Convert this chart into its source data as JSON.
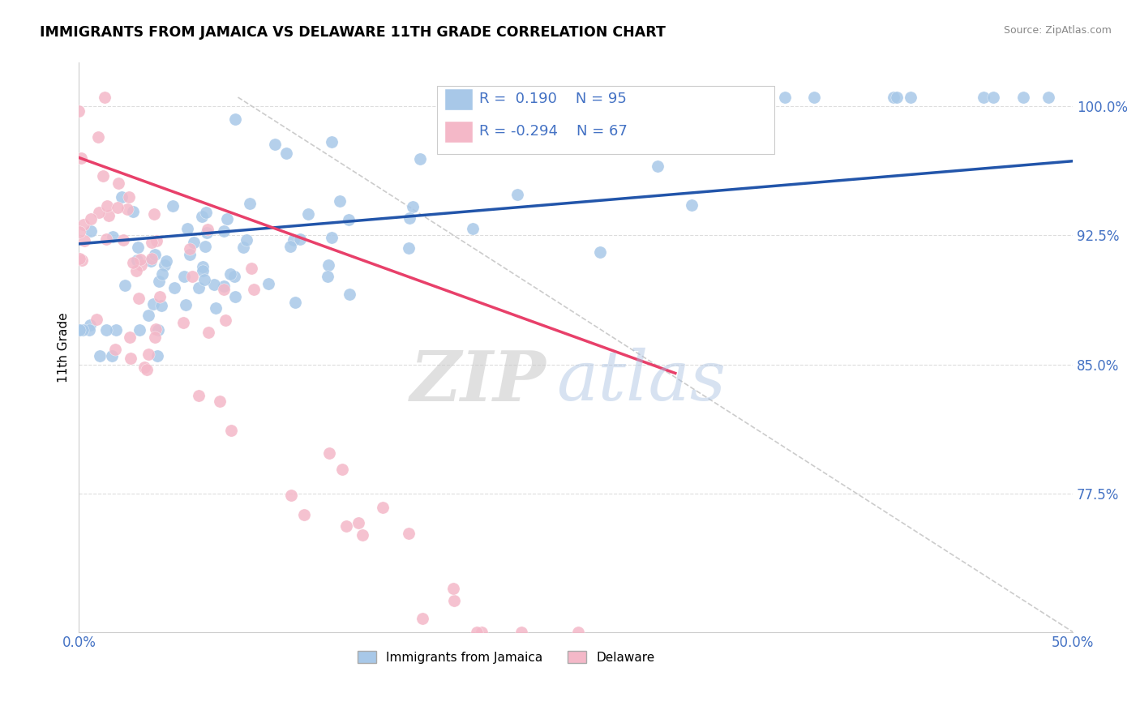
{
  "title": "IMMIGRANTS FROM JAMAICA VS DELAWARE 11TH GRADE CORRELATION CHART",
  "source_text": "Source: ZipAtlas.com",
  "ylabel": "11th Grade",
  "xlim": [
    0.0,
    0.5
  ],
  "ylim": [
    0.695,
    1.025
  ],
  "ytick_values": [
    0.775,
    0.85,
    0.925,
    1.0
  ],
  "ytick_labels": [
    "77.5%",
    "85.0%",
    "92.5%",
    "100.0%"
  ],
  "legend_blue_label": "Immigrants from Jamaica",
  "legend_pink_label": "Delaware",
  "r_blue": 0.19,
  "n_blue": 95,
  "r_pink": -0.294,
  "n_pink": 67,
  "blue_color": "#a8c8e8",
  "pink_color": "#f4b8c8",
  "trend_blue_color": "#2255aa",
  "trend_pink_color": "#e8406a",
  "tick_label_color": "#4472C4",
  "watermark_zip": "ZIP",
  "watermark_atlas": "atlas",
  "blue_trend_x": [
    0.0,
    0.5
  ],
  "blue_trend_y": [
    0.92,
    0.968
  ],
  "pink_trend_x": [
    0.0,
    0.3
  ],
  "pink_trend_y": [
    0.97,
    0.845
  ],
  "gray_line_x": [
    0.08,
    0.5
  ],
  "gray_line_y": [
    1.005,
    0.695
  ]
}
